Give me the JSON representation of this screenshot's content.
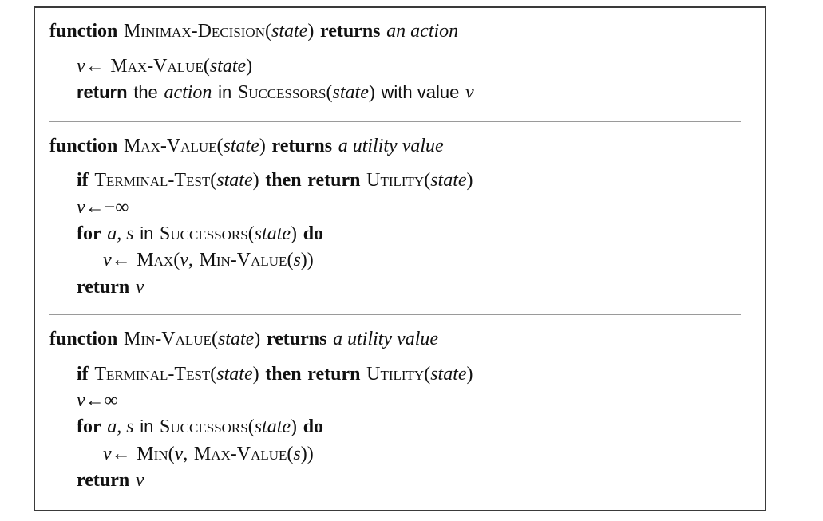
{
  "sections": [
    {
      "header": {
        "kw_function": "function",
        "name": "Minimax-Decision",
        "open": "(",
        "param": "state",
        "close": ")",
        "kw_returns": "returns",
        "ret_desc": "an action"
      },
      "lines": [
        {
          "v": "v",
          "arrow": "←",
          "fn": "Max-Value",
          "open": "(",
          "arg": "state",
          "close": ")"
        },
        {
          "kw_return": "return",
          "the": "the",
          "action": "action",
          "in": "in",
          "successors": "Successors",
          "open": "(",
          "arg": "state",
          "close": ")",
          "with_value": "with value",
          "v": "v"
        }
      ]
    },
    {
      "header": {
        "kw_function": "function",
        "name": "Max-Value",
        "open": "(",
        "param": "state",
        "close": ")",
        "kw_returns": "returns",
        "ret_desc": "a utility value"
      },
      "lines": [
        {
          "kw_if": "if",
          "terminal": "Terminal-Test",
          "open1": "(",
          "arg1": "state",
          "close1": ")",
          "kw_then": "then",
          "kw_return": "return",
          "utility": "Utility",
          "open2": "(",
          "arg2": "state",
          "close2": ")"
        },
        {
          "v": "v",
          "arrow": "←",
          "value": "−∞"
        },
        {
          "kw_for": "for",
          "vars": "a, s",
          "in": "in",
          "successors": "Successors",
          "open": "(",
          "arg": "state",
          "close": ")",
          "kw_do": "do"
        },
        {
          "v": "v",
          "arrow": "←",
          "fn": "Max",
          "open": "(",
          "arg_v": "v",
          "comma": ",",
          "fn2": "Min-Value",
          "open2": "(",
          "arg_s": "s",
          "close2": "))"
        },
        {
          "kw_return": "return",
          "v": "v"
        }
      ]
    },
    {
      "header": {
        "kw_function": "function",
        "name": "Min-Value",
        "open": "(",
        "param": "state",
        "close": ")",
        "kw_returns": "returns",
        "ret_desc": "a utility value"
      },
      "lines": [
        {
          "kw_if": "if",
          "terminal": "Terminal-Test",
          "open1": "(",
          "arg1": "state",
          "close1": ")",
          "kw_then": "then",
          "kw_return": "return",
          "utility": "Utility",
          "open2": "(",
          "arg2": "state",
          "close2": ")"
        },
        {
          "v": "v",
          "arrow": "←",
          "value": "∞"
        },
        {
          "kw_for": "for",
          "vars": "a, s",
          "in": "in",
          "successors": "Successors",
          "open": "(",
          "arg": "state",
          "close": ")",
          "kw_do": "do"
        },
        {
          "v": "v",
          "arrow": "←",
          "fn": "Min",
          "open": "(",
          "arg_v": "v",
          "comma": ",",
          "fn2": "Max-Value",
          "open2": "(",
          "arg_s": "s",
          "close2": "))"
        },
        {
          "kw_return": "return",
          "v": "v"
        }
      ]
    }
  ],
  "colors": {
    "border": "#3a3a3a",
    "divider": "#9a9a9a",
    "text": "#111111"
  }
}
